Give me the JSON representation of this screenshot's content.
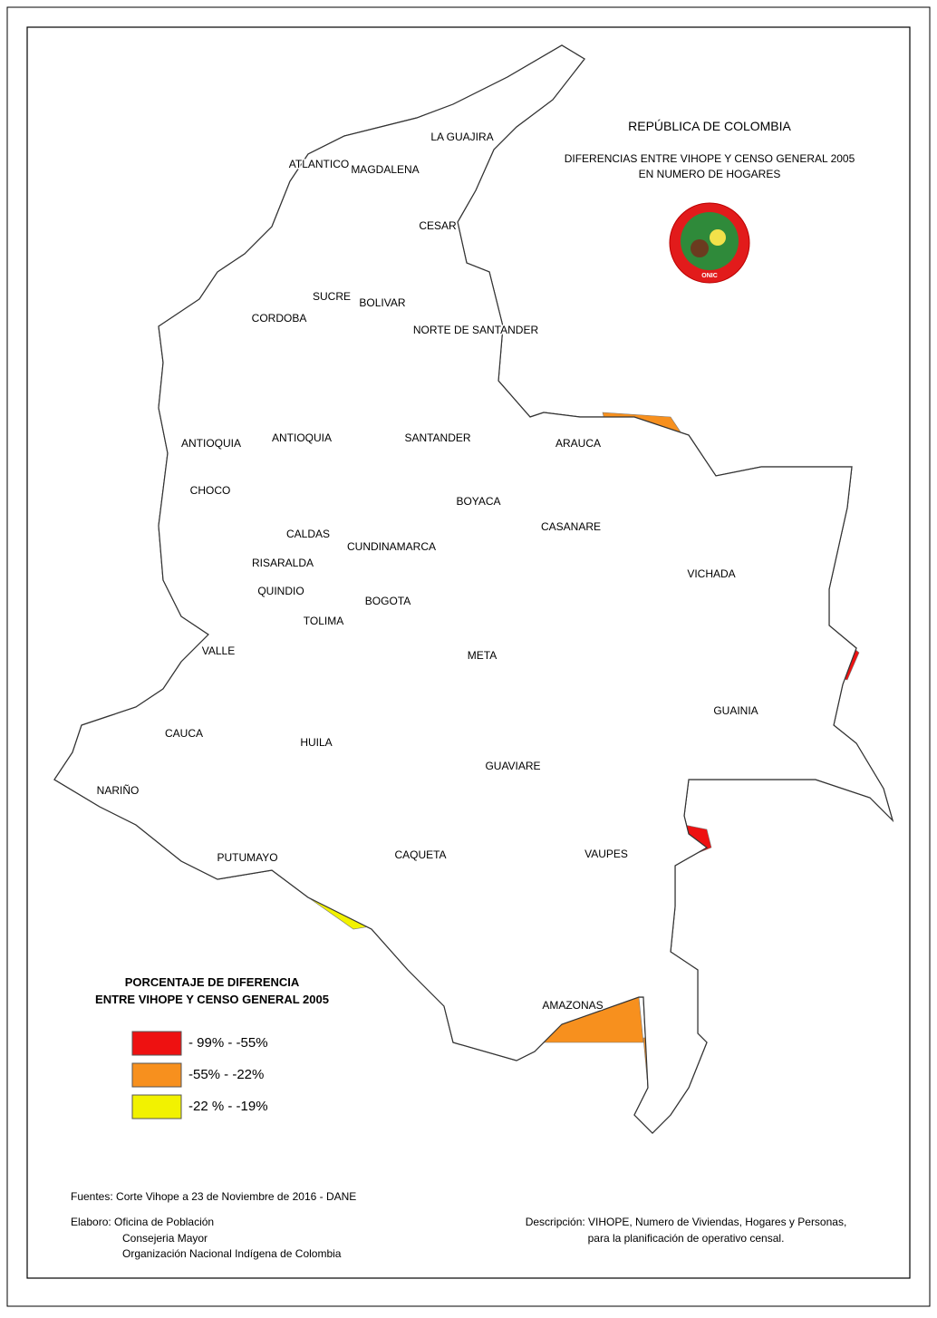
{
  "header": {
    "title": "REPÚBLICA DE COLOMBIA",
    "subtitle_lines": [
      "DIFERENCIAS ENTRE VIHOPE  Y CENSO GENERAL 2005",
      "EN NUMERO DE HOGARES"
    ],
    "logo_text": "ONIC"
  },
  "map": {
    "labels": [
      "LA GUAJIRA",
      "ATLANTICO",
      "MAGDALENA",
      "CESAR",
      "SUCRE",
      "BOLIVAR",
      "CORDOBA",
      "NORTE DE SANTANDER",
      "ANTIOQUIA",
      "ANTIOQUIA",
      "SANTANDER",
      "ARAUCA",
      "CHOCO",
      "BOYACA",
      "CASANARE",
      "CALDAS",
      "CUNDINAMARCA",
      "RISARALDA",
      "VICHADA",
      "QUINDIO",
      "BOGOTA",
      "TOLIMA",
      "VALLE",
      "META",
      "GUAINIA",
      "CAUCA",
      "HUILA",
      "GUAVIARE",
      "NARIÑO",
      "PUTUMAYO",
      "CAQUETA",
      "VAUPES",
      "AMAZONAS"
    ]
  },
  "legend": {
    "title_lines": [
      "PORCENTAJE DE DIFERENCIA",
      "ENTRE VIHOPE Y CENSO GENERAL 2005"
    ],
    "items": [
      {
        "label": "- 99% -  -55%",
        "color": "#ee1111"
      },
      {
        "label": "-55% -  -22%",
        "color": "#f7901e"
      },
      {
        "label": "-22 % -  -19%",
        "color": "#f2f200"
      }
    ]
  },
  "footer": {
    "sources": "Fuentes: Corte Vihope a 23  de Noviembre de 2016 - DANE",
    "elaboro_lines": [
      "Elaboro: Oficina de Población",
      "Consejeria Mayor",
      "Organización Nacional Indígena de Colombia"
    ],
    "description_lines": [
      "Descripción: VIHOPE, Numero de Viviendas, Hogares  y Personas,",
      "para la planificación de operativo censal."
    ]
  }
}
